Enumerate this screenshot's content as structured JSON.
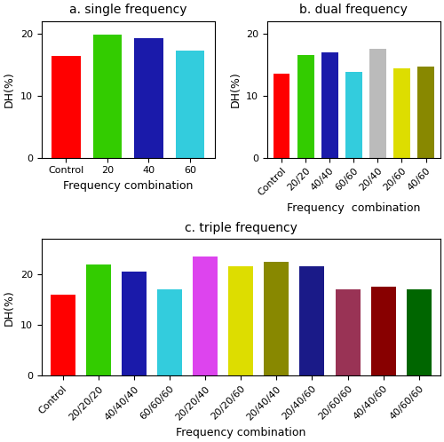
{
  "chart_data": [
    {
      "type": "bar",
      "title": "a. single frequency",
      "categories": [
        "Control",
        "20",
        "40",
        "60"
      ],
      "values": [
        16.3,
        19.8,
        19.2,
        17.2
      ],
      "colors": [
        "#ff0000",
        "#33cc00",
        "#1a1aaa",
        "#33ccdd"
      ],
      "xlabel": "Frequency combination",
      "ylabel": "DH(%)",
      "ylim": [
        0,
        22
      ],
      "yticks": [
        0,
        10,
        20
      ]
    },
    {
      "type": "bar",
      "title": "b. dual frequency",
      "categories": [
        "Control",
        "20/20",
        "40/40",
        "60/60",
        "20/40",
        "20/60",
        "40/60"
      ],
      "values": [
        13.5,
        16.5,
        17.0,
        13.8,
        17.5,
        14.3,
        14.7
      ],
      "colors": [
        "#ff0000",
        "#33cc00",
        "#1a1aaa",
        "#33ccdd",
        "#bbbbbb",
        "#dddd00",
        "#888800"
      ],
      "xlabel": "Frequency  combination",
      "ylabel": "DH(%)",
      "ylim": [
        0,
        22
      ],
      "yticks": [
        0,
        10,
        20
      ]
    },
    {
      "type": "bar",
      "title": "c. triple frequency",
      "categories": [
        "Control",
        "20/20/20",
        "40/40/40",
        "60/60/60",
        "20/20/40",
        "20/20/60",
        "20/40/40",
        "20/40/60",
        "20/60/60",
        "40/40/60",
        "40/60/60"
      ],
      "values": [
        16.0,
        22.0,
        20.5,
        17.0,
        23.5,
        21.5,
        22.5,
        21.5,
        17.0,
        17.5,
        17.0
      ],
      "colors": [
        "#ff0000",
        "#33cc00",
        "#1a1aaa",
        "#33ccdd",
        "#dd44ee",
        "#dddd00",
        "#888800",
        "#1a1a88",
        "#993355",
        "#880000",
        "#006600"
      ],
      "xlabel": "Frequency combination",
      "ylabel": "DH(%)",
      "ylim": [
        0,
        27
      ],
      "yticks": [
        0,
        10,
        20
      ]
    }
  ]
}
